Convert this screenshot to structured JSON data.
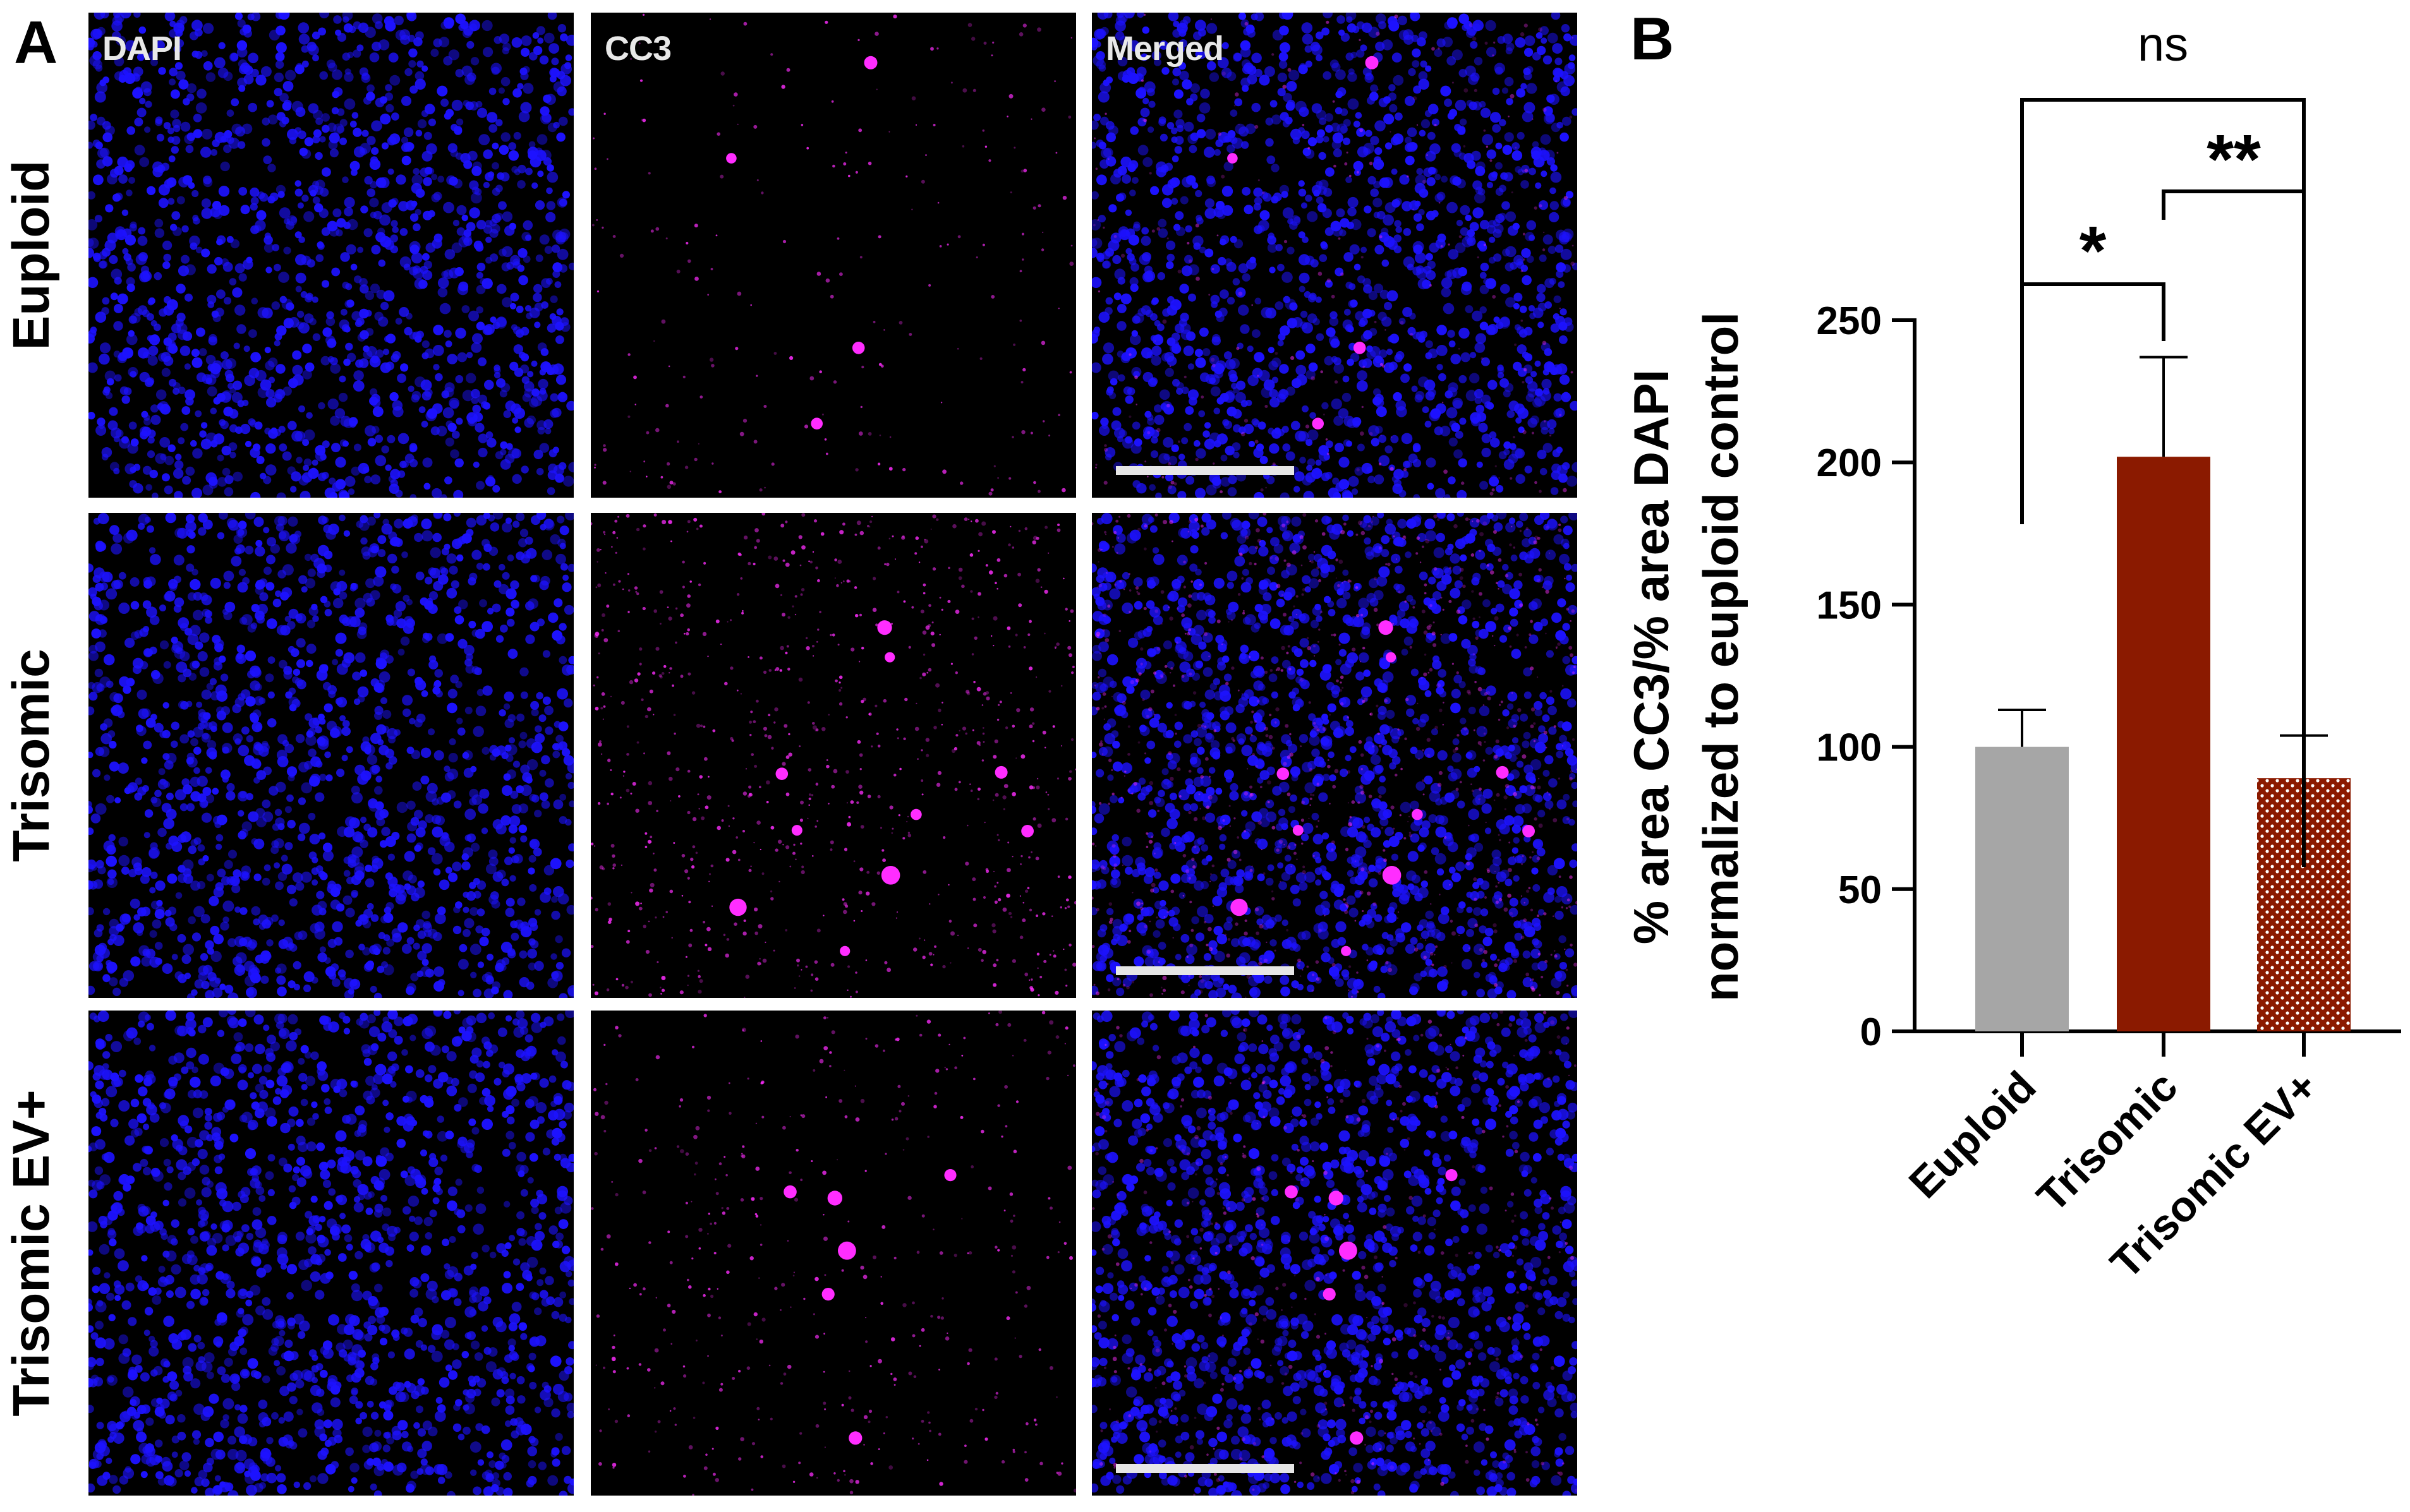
{
  "panel_a": {
    "letter": "A",
    "columns": [
      "DAPI",
      "CC3",
      "Merged"
    ],
    "rows": [
      "Euploid",
      "Trisomic",
      "Trisomic EV+"
    ],
    "colors": {
      "dapi": "#1d12ff",
      "cc3": "#ff2dff",
      "background": "#000000",
      "scale_bar": "#e6e6e6"
    },
    "cc3_density": [
      0.15,
      0.8,
      0.35
    ]
  },
  "panel_b": {
    "letter": "B"
  },
  "chart_data": {
    "type": "bar",
    "categories": [
      "Euploid",
      "Trisomic",
      "Trisomic EV+"
    ],
    "values": [
      100,
      202,
      89
    ],
    "errors": [
      13,
      35,
      15
    ],
    "bar_colors": [
      "#a6a6a6",
      "#8b1a00",
      "#8b1a00"
    ],
    "bar_patterns": [
      "solid",
      "solid",
      "dotted"
    ],
    "ylabel_line1": "% area CC3/% area DAPI",
    "ylabel_line2": "normalized to euploid control",
    "ylim": [
      0,
      250
    ],
    "yticks": [
      "0",
      "50",
      "100",
      "150",
      "200",
      "250"
    ],
    "significance": [
      {
        "groups": [
          "Euploid",
          "Trisomic"
        ],
        "label": "*"
      },
      {
        "groups": [
          "Trisomic",
          "Trisomic EV+"
        ],
        "label": "**"
      },
      {
        "groups": [
          "Euploid",
          "Trisomic EV+"
        ],
        "label": "ns"
      }
    ]
  }
}
